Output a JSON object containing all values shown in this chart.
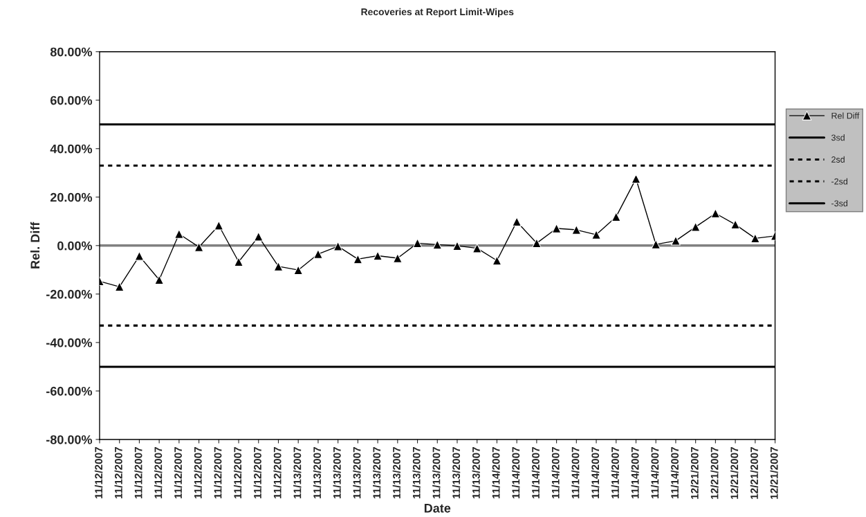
{
  "chart_data": {
    "type": "line",
    "title": "Recoveries at Report Limit-Wipes",
    "xlabel": "Date",
    "ylabel": "Rel. Diff",
    "categories": [
      "11/12/2007",
      "11/12/2007",
      "11/12/2007",
      "11/12/2007",
      "11/12/2007",
      "11/12/2007",
      "11/12/2007",
      "11/12/2007",
      "11/12/2007",
      "11/12/2007",
      "11/13/2007",
      "11/13/2007",
      "11/13/2007",
      "11/13/2007",
      "11/13/2007",
      "11/13/2007",
      "11/13/2007",
      "11/13/2007",
      "11/13/2007",
      "11/13/2007",
      "11/14/2007",
      "11/14/2007",
      "11/14/2007",
      "11/14/2007",
      "11/14/2007",
      "11/14/2007",
      "11/14/2007",
      "11/14/2007",
      "11/14/2007",
      "11/14/2007",
      "12/21/2007",
      "12/21/2007",
      "12/21/2007",
      "12/21/2007",
      "12/21/2007"
    ],
    "series": [
      {
        "name": "Rel Diff",
        "color": "#000000",
        "marker": "triangle",
        "line_style": "solid",
        "values": [
          -14.7,
          -17,
          -4.3,
          -14.1,
          4.8,
          -0.6,
          8.3,
          -6.7,
          3.7,
          -8.6,
          -10.1,
          -3.5,
          -0.3,
          -5.6,
          -4.2,
          -5.2,
          1.0,
          0.4,
          -0.1,
          -1.1,
          -6.2,
          9.9,
          1.0,
          7.1,
          6.5,
          4.5,
          11.9,
          27.6,
          0.5,
          2.0,
          7.7,
          13.3,
          8.7,
          3.0,
          4.0
        ]
      },
      {
        "name": "3sd",
        "color": "#000000",
        "marker": "none",
        "line_style": "solid",
        "values": [
          50,
          50,
          50,
          50,
          50,
          50,
          50,
          50,
          50,
          50,
          50,
          50,
          50,
          50,
          50,
          50,
          50,
          50,
          50,
          50,
          50,
          50,
          50,
          50,
          50,
          50,
          50,
          50,
          50,
          50,
          50,
          50,
          50,
          50,
          50
        ]
      },
      {
        "name": "2sd",
        "color": "#000000",
        "marker": "none",
        "line_style": "dashed",
        "values": [
          33,
          33,
          33,
          33,
          33,
          33,
          33,
          33,
          33,
          33,
          33,
          33,
          33,
          33,
          33,
          33,
          33,
          33,
          33,
          33,
          33,
          33,
          33,
          33,
          33,
          33,
          33,
          33,
          33,
          33,
          33,
          33,
          33,
          33,
          33
        ]
      },
      {
        "name": "-2sd",
        "color": "#000000",
        "marker": "none",
        "line_style": "dashed",
        "values": [
          -33,
          -33,
          -33,
          -33,
          -33,
          -33,
          -33,
          -33,
          -33,
          -33,
          -33,
          -33,
          -33,
          -33,
          -33,
          -33,
          -33,
          -33,
          -33,
          -33,
          -33,
          -33,
          -33,
          -33,
          -33,
          -33,
          -33,
          -33,
          -33,
          -33,
          -33,
          -33,
          -33,
          -33,
          -33
        ]
      },
      {
        "name": "-3sd",
        "color": "#000000",
        "marker": "none",
        "line_style": "solid",
        "values": [
          -50,
          -50,
          -50,
          -50,
          -50,
          -50,
          -50,
          -50,
          -50,
          -50,
          -50,
          -50,
          -50,
          -50,
          -50,
          -50,
          -50,
          -50,
          -50,
          -50,
          -50,
          -50,
          -50,
          -50,
          -50,
          -50,
          -50,
          -50,
          -50,
          -50,
          -50,
          -50,
          -50,
          -50,
          -50
        ]
      }
    ],
    "ylim": [
      -80,
      80
    ],
    "yticks": [
      {
        "value": -80,
        "label": "-80.00%"
      },
      {
        "value": -60,
        "label": "-60.00%"
      },
      {
        "value": -40,
        "label": "-40.00%"
      },
      {
        "value": -20,
        "label": "-20.00%"
      },
      {
        "value": 0,
        "label": "0.00%"
      },
      {
        "value": 20,
        "label": "20.00%"
      },
      {
        "value": 40,
        "label": "40.00%"
      },
      {
        "value": 60,
        "label": "60.00%"
      },
      {
        "value": 80,
        "label": "80.00%"
      }
    ],
    "ref_lines": [
      {
        "axis": "y",
        "value": 0,
        "color": "#808080"
      }
    ],
    "grid": false,
    "legend": "right"
  }
}
